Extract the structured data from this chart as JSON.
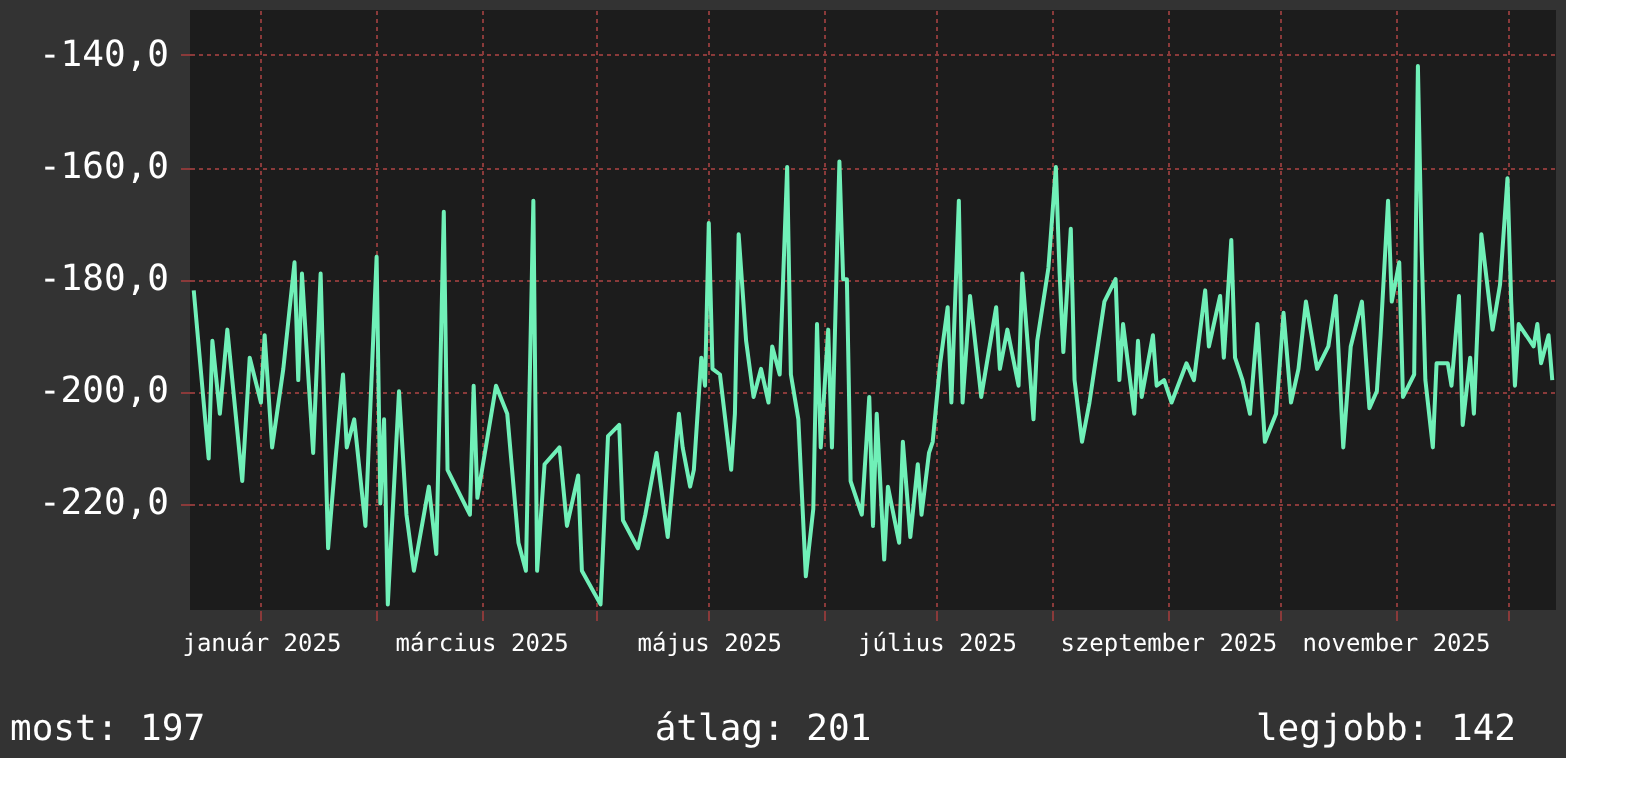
{
  "chart_data": {
    "type": "line",
    "color": "#70f0b8",
    "grid": true,
    "xlim": [
      "2024-12-13",
      "2025-12-14"
    ],
    "xticks": [
      {
        "value": "2025-01-01",
        "label": "január 2025"
      },
      {
        "value": "2025-02-01",
        "label": null
      },
      {
        "value": "2025-03-01",
        "label": "március 2025"
      },
      {
        "value": "2025-04-01",
        "label": null
      },
      {
        "value": "2025-05-01",
        "label": "május 2025"
      },
      {
        "value": "2025-06-01",
        "label": null
      },
      {
        "value": "2025-07-01",
        "label": "július 2025"
      },
      {
        "value": "2025-08-01",
        "label": null
      },
      {
        "value": "2025-09-01",
        "label": "szeptember 2025"
      },
      {
        "value": "2025-10-01",
        "label": null
      },
      {
        "value": "2025-11-01",
        "label": "november 2025"
      },
      {
        "value": "2025-12-01",
        "label": null
      }
    ],
    "ylim": [
      -239,
      -132
    ],
    "yticks": [
      {
        "value": -140,
        "label": "-140,0"
      },
      {
        "value": -160,
        "label": "-160,0"
      },
      {
        "value": -180,
        "label": "-180,0"
      },
      {
        "value": -200,
        "label": "-200,0"
      },
      {
        "value": -220,
        "label": "-220,0"
      }
    ],
    "annotations": [
      "most: 197",
      "átlag: 201",
      "legjobb: 142"
    ],
    "x": [
      "2024-12-14",
      "2024-12-18",
      "2024-12-19",
      "2024-12-21",
      "2024-12-23",
      "2024-12-27",
      "2024-12-29",
      "2025-01-01",
      "2025-01-02",
      "2025-01-04",
      "2025-01-07",
      "2025-01-10",
      "2025-01-11",
      "2025-01-12",
      "2025-01-13",
      "2025-01-15",
      "2025-01-17",
      "2025-01-19",
      "2025-01-21",
      "2025-01-23",
      "2025-01-24",
      "2025-01-26",
      "2025-01-29",
      "2025-02-01",
      "2025-02-02",
      "2025-02-03",
      "2025-02-04",
      "2025-02-07",
      "2025-02-09",
      "2025-02-11",
      "2025-02-15",
      "2025-02-17",
      "2025-02-19",
      "2025-02-20",
      "2025-02-26",
      "2025-02-27",
      "2025-02-28",
      "2025-03-05",
      "2025-03-08",
      "2025-03-11",
      "2025-03-13",
      "2025-03-15",
      "2025-03-16",
      "2025-03-18",
      "2025-03-22",
      "2025-03-24",
      "2025-03-27",
      "2025-03-28",
      "2025-04-02",
      "2025-04-04",
      "2025-04-07",
      "2025-04-08",
      "2025-04-12",
      "2025-04-14",
      "2025-04-17",
      "2025-04-20",
      "2025-04-23",
      "2025-04-24",
      "2025-04-26",
      "2025-04-27",
      "2025-04-29",
      "2025-04-30",
      "2025-05-01",
      "2025-05-02",
      "2025-05-04",
      "2025-05-07",
      "2025-05-08",
      "2025-05-09",
      "2025-05-11",
      "2025-05-13",
      "2025-05-15",
      "2025-05-17",
      "2025-05-18",
      "2025-05-20",
      "2025-05-22",
      "2025-05-23",
      "2025-05-25",
      "2025-05-27",
      "2025-05-29",
      "2025-05-30",
      "2025-05-31",
      "2025-06-02",
      "2025-06-03",
      "2025-06-05",
      "2025-06-06",
      "2025-06-07",
      "2025-06-08",
      "2025-06-11",
      "2025-06-13",
      "2025-06-14",
      "2025-06-15",
      "2025-06-17",
      "2025-06-18",
      "2025-06-21",
      "2025-06-22",
      "2025-06-24",
      "2025-06-26",
      "2025-06-27",
      "2025-06-29",
      "2025-06-30",
      "2025-07-02",
      "2025-07-04",
      "2025-07-05",
      "2025-07-07",
      "2025-07-08",
      "2025-07-10",
      "2025-07-13",
      "2025-07-17",
      "2025-07-18",
      "2025-07-20",
      "2025-07-23",
      "2025-07-24",
      "2025-07-27",
      "2025-07-28",
      "2025-07-31",
      "2025-08-02",
      "2025-08-03",
      "2025-08-04",
      "2025-08-06",
      "2025-08-07",
      "2025-08-09",
      "2025-08-11",
      "2025-08-15",
      "2025-08-18",
      "2025-08-19",
      "2025-08-20",
      "2025-08-23",
      "2025-08-24",
      "2025-08-25",
      "2025-08-28",
      "2025-08-29",
      "2025-08-31",
      "2025-09-02",
      "2025-09-06",
      "2025-09-08",
      "2025-09-11",
      "2025-09-12",
      "2025-09-15",
      "2025-09-16",
      "2025-09-18",
      "2025-09-19",
      "2025-09-21",
      "2025-09-23",
      "2025-09-25",
      "2025-09-27",
      "2025-09-30",
      "2025-10-02",
      "2025-10-04",
      "2025-10-06",
      "2025-10-08",
      "2025-10-11",
      "2025-10-14",
      "2025-10-16",
      "2025-10-18",
      "2025-10-20",
      "2025-10-23",
      "2025-10-25",
      "2025-10-27",
      "2025-10-28",
      "2025-10-30",
      "2025-10-31",
      "2025-11-02",
      "2025-11-03",
      "2025-11-06",
      "2025-11-07",
      "2025-11-08",
      "2025-11-09",
      "2025-11-11",
      "2025-11-12",
      "2025-11-15",
      "2025-11-16",
      "2025-11-18",
      "2025-11-19",
      "2025-11-21",
      "2025-11-22",
      "2025-11-24",
      "2025-11-27",
      "2025-11-29",
      "2025-12-01",
      "2025-12-02",
      "2025-12-03",
      "2025-12-04",
      "2025-12-08",
      "2025-12-09",
      "2025-12-10",
      "2025-12-12",
      "2025-12-13"
    ],
    "values": [
      -182,
      -212,
      -191,
      -204,
      -189,
      -216,
      -194,
      -202,
      -190,
      -210,
      -196,
      -177,
      -198,
      -179,
      -190,
      -211,
      -179,
      -228,
      -212,
      -197,
      -210,
      -205,
      -224,
      -176,
      -220,
      -205,
      -238,
      -200,
      -222,
      -232,
      -217,
      -229,
      -168,
      -214,
      -222,
      -199,
      -219,
      -199,
      -204,
      -227,
      -232,
      -166,
      -232,
      -213,
      -210,
      -224,
      -215,
      -232,
      -238,
      -208,
      -206,
      -223,
      -228,
      -222,
      -211,
      -226,
      -204,
      -210,
      -217,
      -214,
      -194,
      -199,
      -170,
      -196,
      -197,
      -214,
      -204,
      -172,
      -191,
      -201,
      -196,
      -202,
      -192,
      -197,
      -160,
      -197,
      -205,
      -233,
      -221,
      -188,
      -210,
      -189,
      -210,
      -159,
      -180,
      -180,
      -216,
      -222,
      -201,
      -224,
      -204,
      -230,
      -217,
      -227,
      -209,
      -226,
      -213,
      -222,
      -211,
      -209,
      -195,
      -185,
      -202,
      -166,
      -202,
      -183,
      -201,
      -185,
      -196,
      -189,
      -199,
      -179,
      -205,
      -191,
      -178,
      -160,
      -179,
      -193,
      -171,
      -198,
      -209,
      -202,
      -184,
      -180,
      -198,
      -188,
      -204,
      -191,
      -201,
      -190,
      -199,
      -198,
      -202,
      -195,
      -198,
      -182,
      -192,
      -183,
      -194,
      -173,
      -194,
      -198,
      -204,
      -188,
      -209,
      -204,
      -186,
      -202,
      -196,
      -184,
      -196,
      -192,
      -183,
      -210,
      -192,
      -184,
      -203,
      -200,
      -190,
      -166,
      -184,
      -177,
      -201,
      -197,
      -142,
      -175,
      -198,
      -210,
      -195,
      -195,
      -199,
      -183,
      -206,
      -194,
      -204,
      -172,
      -189,
      -181,
      -162,
      -184,
      -199,
      -188,
      -192,
      -188,
      -195,
      -190,
      -198
    ]
  }
}
